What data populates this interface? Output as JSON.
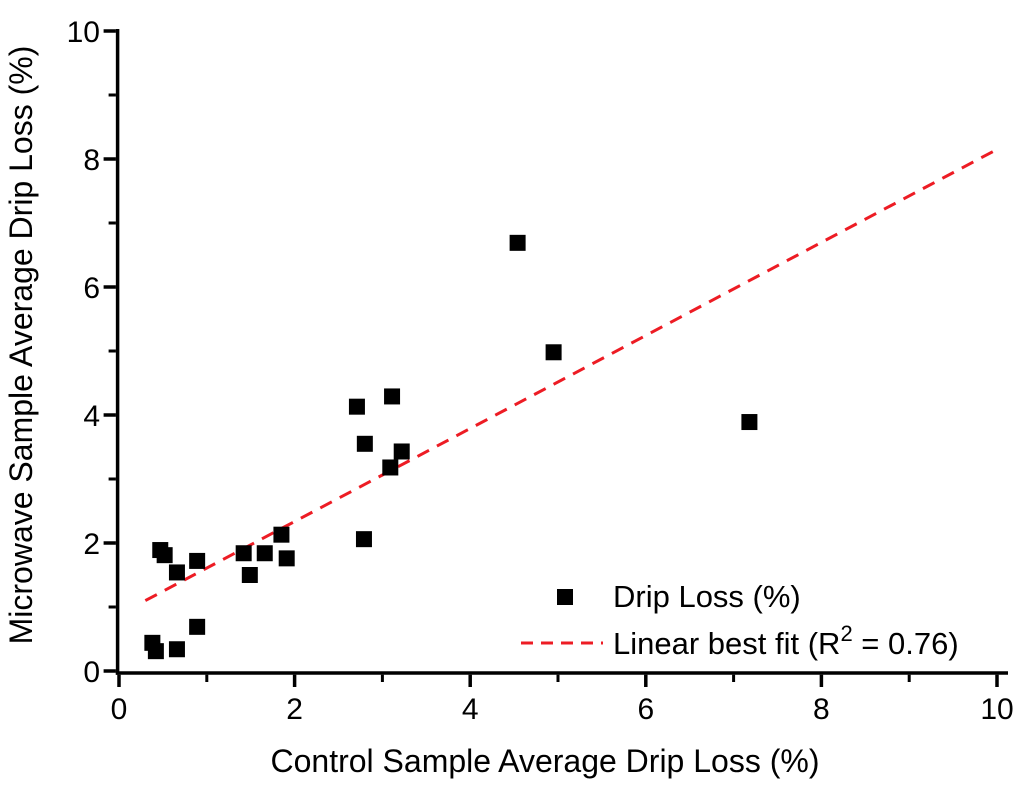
{
  "chart_data": {
    "type": "scatter",
    "title": "",
    "xlabel": "Control Sample Average Drip Loss (%)",
    "ylabel": "Microwave Sample Average Drip Loss (%)",
    "xlim": [
      0,
      10
    ],
    "ylim": [
      0,
      10
    ],
    "xticks_major": [
      0,
      2,
      4,
      6,
      8,
      10
    ],
    "xticks_minor": [
      1,
      3,
      5,
      7,
      9
    ],
    "yticks_major": [
      0,
      2,
      4,
      6,
      8,
      10
    ],
    "yticks_minor": [
      1,
      3,
      5,
      7,
      9
    ],
    "grid": false,
    "legend_position": "lower-right-inside",
    "colors": {
      "marker": "#000000",
      "fit_line": "#ed1c24",
      "axis": "#000000"
    },
    "series": [
      {
        "name": "Drip Loss (%)",
        "type": "scatter",
        "marker": "filled-square",
        "color": "#000000",
        "points": [
          [
            0.38,
            0.44
          ],
          [
            0.42,
            0.31
          ],
          [
            0.66,
            0.34
          ],
          [
            0.89,
            0.69
          ],
          [
            0.47,
            1.89
          ],
          [
            0.52,
            1.81
          ],
          [
            0.66,
            1.54
          ],
          [
            0.89,
            1.72
          ],
          [
            1.42,
            1.84
          ],
          [
            1.49,
            1.5
          ],
          [
            1.66,
            1.84
          ],
          [
            1.85,
            2.13
          ],
          [
            1.91,
            1.76
          ],
          [
            2.71,
            4.13
          ],
          [
            2.8,
            3.55
          ],
          [
            3.11,
            4.29
          ],
          [
            3.22,
            3.43
          ],
          [
            3.09,
            3.18
          ],
          [
            2.79,
            2.06
          ],
          [
            4.54,
            6.69
          ],
          [
            4.95,
            4.98
          ],
          [
            7.18,
            3.89
          ]
        ]
      },
      {
        "name": "Linear best fit (R² = 0.76)",
        "type": "line",
        "style": "dashed",
        "color": "#ed1c24",
        "r_squared": 0.76,
        "endpoints": [
          [
            0.3,
            1.1
          ],
          [
            10.0,
            8.15
          ]
        ]
      }
    ],
    "legend": {
      "items": [
        {
          "label": "Drip Loss (%)",
          "marker": "black-square"
        },
        {
          "label": "Linear best fit (R² = 0.76)",
          "marker": "red-dashed-line"
        }
      ]
    }
  }
}
